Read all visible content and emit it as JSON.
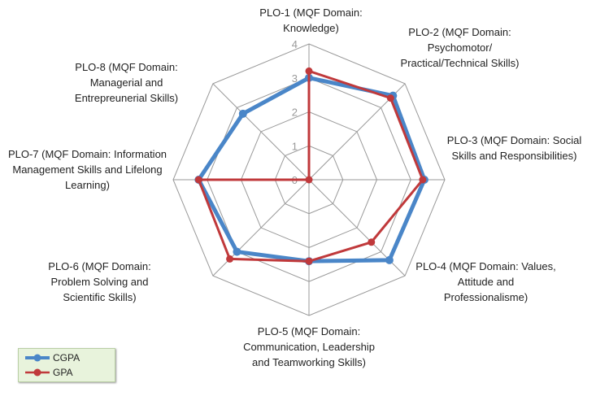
{
  "chart_data": {
    "type": "radar",
    "title": "",
    "categories": [
      "PLO-1 (MQF Domain: Knowledge)",
      "PLO-2 (MQF Domain: Psychomotor/ Practical/Technical Skills)",
      "PLO-3 (MQF Domain: Social Skills and Responsibilities)",
      "PLO-4 (MQF Domain: Values, Attitude and Professionalisme)",
      "PLO-5 (MQF Domain: Communication, Leadership and Teamworking Skills)",
      "PLO-6 (MQF Domain: Problem Solving and Scientific Skills)",
      "PLO-7 (MQF Domain: Information Management Skills and Lifelong Learning)",
      "PLO-8 (MQF Domain: Managerial and Entrepreunerial Skills)"
    ],
    "series": [
      {
        "name": "CGPA",
        "color": "#4a86c8",
        "values": [
          3.0,
          3.5,
          3.4,
          3.35,
          2.4,
          3.0,
          3.25,
          2.75
        ]
      },
      {
        "name": "GPA",
        "color": "#c0393b",
        "values": [
          3.2,
          3.4,
          3.35,
          2.6,
          2.4,
          3.3,
          3.25,
          0
        ]
      }
    ],
    "radial_ticks": [
      "0",
      "1",
      "2",
      "3",
      "4"
    ],
    "rlim": [
      0,
      4
    ],
    "legend": "bottom-left"
  }
}
